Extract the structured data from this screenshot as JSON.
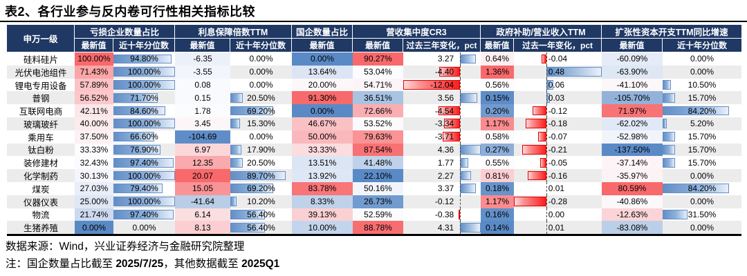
{
  "title": "表2、各行业参与反内卷可行性相关指标比较",
  "source_note": "数据来源：Wind，兴业证券经济与金融研究院整理",
  "footnote_parts": [
    {
      "text": "注：国企数量占比截至 ",
      "bold": false
    },
    {
      "text": "2025/7/25",
      "bold": true
    },
    {
      "text": "，其他数据截至 ",
      "bold": false
    },
    {
      "text": "2025Q1",
      "bold": true
    }
  ],
  "colors": {
    "header_bg": "#1f3864",
    "header_text": "#ffffff",
    "databar_blue": "#638ec6",
    "negative_bar_red": "#fb1d1d",
    "scale_red_max": "#f8696b",
    "scale_blue_min": "#5a8ac6",
    "row_stripe": "#ececec"
  },
  "table": {
    "row_header": "申万一级",
    "groups": [
      {
        "label": "亏损企业数量占比",
        "span": 2
      },
      {
        "label": "利息保障倍数TTM",
        "span": 2
      },
      {
        "label": "国企数量占比",
        "span": 1
      },
      {
        "label": "营收集中度CR3",
        "span": 2
      },
      {
        "label": "政府补助/营业收入TTM",
        "span": 2
      },
      {
        "label": "扩张性资本开支TTM同比增速",
        "span": 2
      }
    ],
    "columns": [
      {
        "key": "loss_latest",
        "label": "最新值",
        "type": "scale"
      },
      {
        "key": "loss_decile",
        "label": "近十年分位数",
        "type": "bar"
      },
      {
        "key": "interest_latest",
        "label": "最新值",
        "type": "scale"
      },
      {
        "key": "interest_decile",
        "label": "近十年分位数",
        "type": "bar"
      },
      {
        "key": "soe_latest",
        "label": "最新值",
        "type": "scale"
      },
      {
        "key": "cr3_latest",
        "label": "最新值",
        "type": "scale"
      },
      {
        "key": "cr3_change",
        "label": "过去三年变化，pct",
        "type": "axisbar",
        "axis": 0.734,
        "range": 16.4,
        "text_side": "left"
      },
      {
        "key": "gov_latest",
        "label": "最新值",
        "type": "scale"
      },
      {
        "key": "gov_change",
        "label": "过去一年变化，pct",
        "type": "axisbar",
        "axis": 0.368,
        "range": 0.76,
        "text_side": "right"
      },
      {
        "key": "capex_latest",
        "label": "最新值",
        "type": "scale"
      },
      {
        "key": "capex_decile",
        "label": "近十年分位数",
        "type": "bar"
      }
    ],
    "rows": [
      {
        "name": "硅料硅片",
        "cells": [
          {
            "t": "100.00%",
            "bg": "#f8696b"
          },
          {
            "t": "94.80%",
            "f": 0.948
          },
          {
            "t": "-6.35",
            "bg": "#ecf1f9"
          },
          {
            "t": "0.00%",
            "f": 0
          },
          {
            "t": "0.00%",
            "bg": "#5a8ac6"
          },
          {
            "t": "90.27%",
            "bg": "#f8696b"
          },
          {
            "t": "3.27",
            "v": 3.27
          },
          {
            "t": "0.64%",
            "bg": "#fcf0f2"
          },
          {
            "t": "-0.04",
            "v": -0.04
          },
          {
            "t": "-60.09%",
            "bg": "#e5ebf7"
          },
          {
            "t": "0.00%",
            "f": 0
          }
        ]
      },
      {
        "name": "光伏电池组件",
        "cells": [
          {
            "t": "71.43%",
            "bg": "#faa5a7"
          },
          {
            "t": "100.00%",
            "f": 1
          },
          {
            "t": "-3.55",
            "bg": "#f2f5fb"
          },
          {
            "t": "0.00%",
            "f": 0
          },
          {
            "t": "13.64%",
            "bg": "#dce5f4"
          },
          {
            "t": "53.04%",
            "bg": "#fcfbfd"
          },
          {
            "t": "-4.40",
            "v": -4.4
          },
          {
            "t": "1.36%",
            "bg": "#f8696b"
          },
          {
            "t": "0.48",
            "v": 0.48
          },
          {
            "t": "-63.90%",
            "bg": "#dee7f4"
          },
          {
            "t": "0.00%",
            "f": 0
          }
        ]
      },
      {
        "name": "锂电专用设备",
        "cells": [
          {
            "t": "57.89%",
            "bg": "#fbc3c6"
          },
          {
            "t": "100.00%",
            "f": 1
          },
          {
            "t": "0.08",
            "bg": "#f9fafd"
          },
          {
            "t": "0.00%",
            "f": 0
          },
          {
            "t": "20.00%",
            "bg": "#fcf8f9"
          },
          {
            "t": "54.71%",
            "bg": "#fcf4f6"
          },
          {
            "t": "-12.04",
            "v": -12.04
          },
          {
            "t": "0.56%",
            "bg": "#fcfcfe"
          },
          {
            "t": "0.06",
            "v": 0.06
          },
          {
            "t": "-41.10%",
            "bg": "#fcf7f8"
          },
          {
            "t": "10.50%",
            "f": 0.105
          }
        ]
      },
      {
        "name": "普钢",
        "cells": [
          {
            "t": "56.52%",
            "bg": "#fbc7ca"
          },
          {
            "t": "71.70%",
            "f": 0.717
          },
          {
            "t": "0.15",
            "bg": "#f9fafd"
          },
          {
            "t": "20.50%",
            "f": 0.205
          },
          {
            "t": "91.30%",
            "bg": "#f8696b"
          },
          {
            "t": "36.51%",
            "bg": "#a9c3e3"
          },
          {
            "t": "3.56",
            "v": 3.56
          },
          {
            "t": "0.15%",
            "bg": "#5e8cc7"
          },
          {
            "t": "0.03",
            "v": 0.03
          },
          {
            "t": "-105.70%",
            "bg": "#93b2da"
          },
          {
            "t": "15.70%",
            "f": 0.157
          }
        ]
      },
      {
        "name": "互联网电商",
        "cells": [
          {
            "t": "42.11%",
            "bg": "#fbe7e9"
          },
          {
            "t": "84.60%",
            "f": 0.846
          },
          {
            "t": "1.78",
            "bg": "#fbfcfe"
          },
          {
            "t": "69.20%",
            "f": 0.692
          },
          {
            "t": "0.00%",
            "bg": "#5a8ac6"
          },
          {
            "t": "72.66%",
            "bg": "#faaeb1"
          },
          {
            "t": "-4.54",
            "v": -4.54
          },
          {
            "t": "0.20%",
            "bg": "#719bce"
          },
          {
            "t": "-0.12",
            "v": -0.12
          },
          {
            "t": "71.97%",
            "bg": "#f87375"
          },
          {
            "t": "84.20%",
            "f": 0.842
          }
        ]
      },
      {
        "name": "玻璃玻纤",
        "cells": [
          {
            "t": "40.00%",
            "bg": "#fcebed"
          },
          {
            "t": "100.00%",
            "f": 1
          },
          {
            "t": "3.45",
            "bg": "#fcf6f8"
          },
          {
            "t": "15.30%",
            "f": 0.153
          },
          {
            "t": "46.67%",
            "bg": "#fac1c5"
          },
          {
            "t": "53.52%",
            "bg": "#fcfafc"
          },
          {
            "t": "-3.34",
            "v": -3.34
          },
          {
            "t": "1.17%",
            "bg": "#f98c8e"
          },
          {
            "t": "-0.18",
            "v": -0.18
          },
          {
            "t": "-62.02%",
            "bg": "#e1e9f6"
          },
          {
            "t": "5.20%",
            "f": 0.052
          }
        ]
      },
      {
        "name": "乘用车",
        "cells": [
          {
            "t": "37.50%",
            "bg": "#fcf1f3"
          },
          {
            "t": "66.60%",
            "f": 0.666
          },
          {
            "t": "-104.69",
            "bg": "#5f8dc8"
          },
          {
            "t": "0.00%",
            "f": 0
          },
          {
            "t": "50.00%",
            "bg": "#fab8bc"
          },
          {
            "t": "79.63%",
            "bg": "#f99395"
          },
          {
            "t": "-3.71",
            "v": -3.71
          },
          {
            "t": "0.58%",
            "bg": "#fcfafb"
          },
          {
            "t": "-0.07",
            "v": -0.07
          },
          {
            "t": "-52.98%",
            "bg": "#f1f4fb"
          },
          {
            "t": "15.70%",
            "f": 0.157
          }
        ]
      },
      {
        "name": "钛白粉",
        "cells": [
          {
            "t": "33.33%",
            "bg": "#fcfbfd"
          },
          {
            "t": "76.90%",
            "f": 0.769
          },
          {
            "t": "6.97",
            "bg": "#fbd7da"
          },
          {
            "t": "17.90%",
            "f": 0.179
          },
          {
            "t": "33.33%",
            "bg": "#fbdcdf"
          },
          {
            "t": "87.54%",
            "bg": "#f87174"
          },
          {
            "t": "4.36",
            "v": 4.36
          },
          {
            "t": "0.27%",
            "bg": "#8daed8"
          },
          {
            "t": "-0.21",
            "v": -0.21
          },
          {
            "t": "-137.50%",
            "bg": "#5a8ac6"
          },
          {
            "t": "15.70%",
            "f": 0.157
          }
        ]
      },
      {
        "name": "装修建材",
        "cells": [
          {
            "t": "32.43%",
            "bg": "#fbfbfe"
          },
          {
            "t": "97.40%",
            "f": 0.974
          },
          {
            "t": "12.35",
            "bg": "#faaaac"
          },
          {
            "t": "20.50%",
            "f": 0.205
          },
          {
            "t": "13.51%",
            "bg": "#dbe5f4"
          },
          {
            "t": "41.48%",
            "bg": "#c0d2ea"
          },
          {
            "t": "1.77",
            "v": 1.77
          },
          {
            "t": "0.55%",
            "bg": "#fcfcfe"
          },
          {
            "t": "-0.05",
            "v": -0.05
          },
          {
            "t": "-37.14%",
            "bg": "#fcf4f6"
          },
          {
            "t": "15.70%",
            "f": 0.157
          }
        ]
      },
      {
        "name": "化学制药",
        "cells": [
          {
            "t": "30.13%",
            "bg": "#f4f6fb"
          },
          {
            "t": "100.00%",
            "f": 1
          },
          {
            "t": "20.07",
            "bg": "#f8696b"
          },
          {
            "t": "89.70%",
            "f": 0.897
          },
          {
            "t": "13.92%",
            "bg": "#dee7f5"
          },
          {
            "t": "22.10%",
            "bg": "#5a8ac6"
          },
          {
            "t": "2.27",
            "v": 2.27
          },
          {
            "t": "0.81%",
            "bg": "#fbced1"
          },
          {
            "t": "-0.16",
            "v": -0.16
          },
          {
            "t": "-35.97%",
            "bg": "#fcf3f5"
          },
          {
            "t": "0.00%",
            "f": 0
          }
        ]
      },
      {
        "name": "煤炭",
        "cells": [
          {
            "t": "27.03%",
            "bg": "#e9eef8"
          },
          {
            "t": "79.40%",
            "f": 0.794
          },
          {
            "t": "15.05",
            "bg": "#f99496"
          },
          {
            "t": "69.20%",
            "f": 0.692
          },
          {
            "t": "83.78%",
            "bg": "#f87578"
          },
          {
            "t": "50.16%",
            "bg": "#f1f5fb"
          },
          {
            "t": "3.37",
            "v": 3.37
          },
          {
            "t": "0.18%",
            "bg": "#6694cb"
          },
          {
            "t": "0.01",
            "v": 0.01
          },
          {
            "t": "80.59%",
            "bg": "#f8696b"
          },
          {
            "t": "84.20%",
            "f": 0.842
          }
        ]
      },
      {
        "name": "仪器仪表",
        "cells": [
          {
            "t": "25.00%",
            "bg": "#dfe7f4"
          },
          {
            "t": "100.00%",
            "f": 1
          },
          {
            "t": "-41.64",
            "bg": "#b9cde7"
          },
          {
            "t": "10.20%",
            "f": 0.102
          },
          {
            "t": "8.33%",
            "bg": "#bfd2ea"
          },
          {
            "t": "26.73%",
            "bg": "#729bcf"
          },
          {
            "t": "-0.12",
            "v": -0.12
          },
          {
            "t": "1.17%",
            "bg": "#f98c8e"
          },
          {
            "t": "-0.28",
            "v": -0.28
          },
          {
            "t": "-40.86%",
            "bg": "#fcf7f9"
          },
          {
            "t": "0.00%",
            "f": 0
          }
        ]
      },
      {
        "name": "物流",
        "cells": [
          {
            "t": "21.74%",
            "bg": "#cdd9ee"
          },
          {
            "t": "97.40%",
            "f": 0.974
          },
          {
            "t": "6.14",
            "bg": "#fbdee0"
          },
          {
            "t": "56.40%",
            "f": 0.564
          },
          {
            "t": "39.13%",
            "bg": "#fbd0d3"
          },
          {
            "t": "52.59%",
            "bg": "#fbfbfd"
          },
          {
            "t": "-0.38",
            "v": -0.38
          },
          {
            "t": "0.16%",
            "bg": "#6090c9"
          },
          {
            "t": "0.00",
            "v": 0
          },
          {
            "t": "-12.63%",
            "bg": "#fbd4d7"
          },
          {
            "t": "31.50%",
            "f": 0.315
          }
        ]
      },
      {
        "name": "生猪养殖",
        "cells": [
          {
            "t": "0.00%",
            "bg": "#5a8ac6"
          },
          {
            "t": "0.00%",
            "f": 0
          },
          {
            "t": "8.13",
            "bg": "#fbcfd2"
          },
          {
            "t": "56.40%",
            "f": 0.564
          },
          {
            "t": "10.00%",
            "bg": "#c3d5ec"
          },
          {
            "t": "88.78%",
            "bg": "#f86e70"
          },
          {
            "t": "4.31",
            "v": 4.31
          },
          {
            "t": "0.14%",
            "bg": "#5a8ac6"
          },
          {
            "t": "0.01",
            "v": 0.01
          },
          {
            "t": "-83.08%",
            "bg": "#bbcfe8"
          },
          {
            "t": "0.00%",
            "f": 0
          }
        ]
      }
    ]
  }
}
